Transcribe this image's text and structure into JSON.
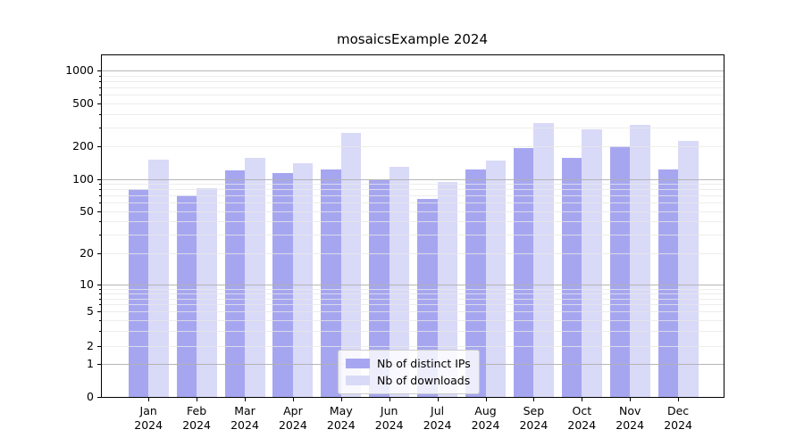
{
  "title": "mosaicsExample 2024",
  "chart_data": {
    "type": "bar",
    "title": "mosaicsExample 2024",
    "categories": [
      "Jan",
      "Feb",
      "Mar",
      "Apr",
      "May",
      "Jun",
      "Jul",
      "Aug",
      "Sep",
      "Oct",
      "Nov",
      "Dec"
    ],
    "year_label": "2024",
    "series": [
      {
        "name": "Nb of distinct IPs",
        "color": "#a6a6f0",
        "values": [
          80,
          71,
          121,
          115,
          123,
          98,
          65,
          122,
          194,
          158,
          199,
          122
        ]
      },
      {
        "name": "Nb of downloads",
        "color": "#d9d9f8",
        "values": [
          150,
          83,
          158,
          141,
          268,
          131,
          94,
          147,
          330,
          288,
          316,
          225
        ]
      }
    ],
    "yscale": "symlog",
    "y_ticks": [
      0,
      1,
      2,
      5,
      10,
      20,
      50,
      100,
      200,
      500,
      1000
    ],
    "ylim": [
      0,
      1400
    ],
    "xlabel": "",
    "ylabel": "",
    "grid": true,
    "legend_position": "lower center",
    "grid_major_color": "#b0b0b0",
    "grid_minor_color": "#e8e8e8"
  },
  "legend": {
    "items": [
      {
        "label": "Nb of distinct IPs",
        "color": "#a6a6f0"
      },
      {
        "label": "Nb of downloads",
        "color": "#d9d9f8"
      }
    ]
  }
}
